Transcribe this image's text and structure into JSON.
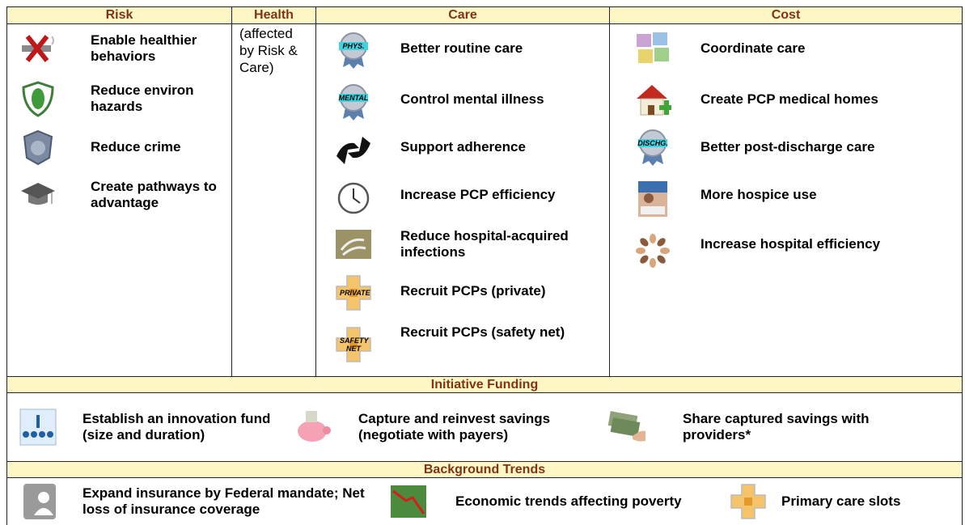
{
  "header": {
    "columns": [
      "Risk",
      "Health",
      "Care",
      "Cost"
    ]
  },
  "risk": [
    {
      "text": "Enable healthier behaviors"
    },
    {
      "text": "Reduce environ hazards"
    },
    {
      "text": "Reduce crime"
    },
    {
      "text": "Create pathways to advantage"
    }
  ],
  "health": "(affected by Risk & Care)",
  "care": [
    {
      "text": "Better routine care",
      "badge": "PHYS."
    },
    {
      "text": "Control mental illness",
      "badge": "MENTAL"
    },
    {
      "text": "Support adherence"
    },
    {
      "text": "Increase PCP efficiency"
    },
    {
      "text": "Reduce hospital-acquired infections"
    },
    {
      "text": "Recruit PCPs (private)",
      "badge": "PRIVATE"
    },
    {
      "text": "Recruit PCPs (safety net)",
      "badge": "SAFETY NET"
    }
  ],
  "cost": [
    {
      "text": "Coordinate care"
    },
    {
      "text": "Create PCP medical homes"
    },
    {
      "text": "Better post-discharge care",
      "badge": "DISCHG."
    },
    {
      "text": "More hospice use"
    },
    {
      "text": "Increase hospital efficiency"
    }
  ],
  "funding": {
    "title": "Initiative Funding",
    "items": [
      {
        "text": "Establish an innovation fund (size and duration)"
      },
      {
        "text": "Capture and reinvest savings (negotiate with payers)"
      },
      {
        "text": "Share captured savings with providers*"
      }
    ]
  },
  "trends": {
    "title": "Background Trends",
    "items": [
      {
        "text": "Expand insurance by Federal mandate; Net loss of insurance coverage"
      },
      {
        "text": "Economic trends affecting poverty"
      },
      {
        "text": "Primary care slots"
      }
    ]
  }
}
